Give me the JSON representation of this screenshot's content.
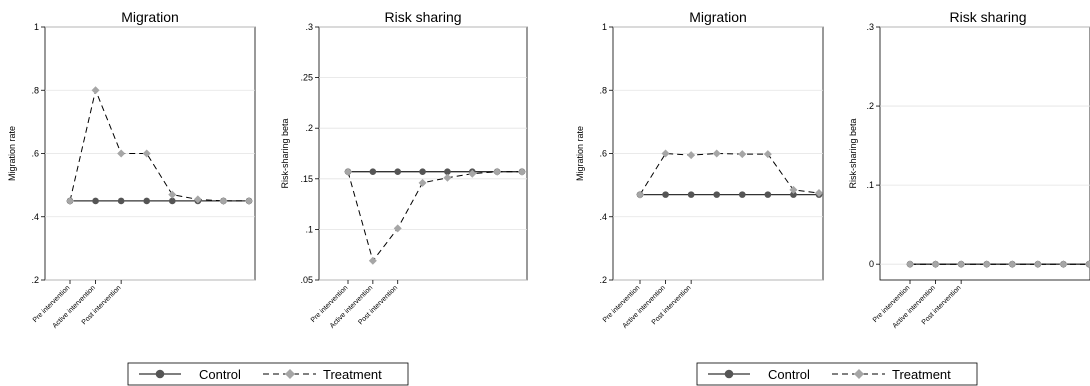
{
  "legend": {
    "control_label": "Control",
    "treatment_label": "Treatment",
    "control_color": "#555555",
    "treatment_color": "#a6a6a6"
  },
  "chart_data": [
    {
      "type": "line",
      "title": "Migration",
      "ylabel": "Migration rate",
      "ylim": [
        0.2,
        1.0
      ],
      "yticks": [
        0.2,
        0.4,
        0.6,
        0.8,
        1.0
      ],
      "ytick_labels": [
        ".2",
        ".4",
        ".6",
        ".8",
        "1"
      ],
      "grid": true,
      "x_tick_labels": [
        "Pre intervention",
        "Active intervention",
        "Post intervention"
      ],
      "series": [
        {
          "name": "Control",
          "values": [
            0.45,
            0.45,
            0.45,
            0.45,
            0.45,
            0.45,
            0.45,
            0.45
          ]
        },
        {
          "name": "Treatment",
          "values": [
            0.45,
            0.8,
            0.6,
            0.6,
            0.47,
            0.455,
            0.45,
            0.45
          ]
        }
      ]
    },
    {
      "type": "line",
      "title": "Risk sharing",
      "ylabel": "Risk-sharing beta",
      "ylim": [
        0.05,
        0.3
      ],
      "yticks": [
        0.05,
        0.1,
        0.15,
        0.2,
        0.25,
        0.3
      ],
      "ytick_labels": [
        ".05",
        ".1",
        ".15",
        ".2",
        ".25",
        ".3"
      ],
      "grid": true,
      "x_tick_labels": [
        "Pre intervention",
        "Active intervention",
        "Post intervention"
      ],
      "series": [
        {
          "name": "Control",
          "values": [
            0.157,
            0.157,
            0.157,
            0.157,
            0.157,
            0.157,
            0.157,
            0.157
          ]
        },
        {
          "name": "Treatment",
          "values": [
            0.157,
            0.069,
            0.101,
            0.146,
            0.151,
            0.155,
            0.157,
            0.157
          ]
        }
      ]
    },
    {
      "type": "line",
      "title": "Migration",
      "ylabel": "Migration rate",
      "ylim": [
        0.2,
        1.0
      ],
      "yticks": [
        0.2,
        0.4,
        0.6,
        0.8,
        1.0
      ],
      "ytick_labels": [
        ".2",
        ".4",
        ".6",
        ".8",
        "1"
      ],
      "grid": true,
      "x_tick_labels": [
        "Pre intervention",
        "Active intervention",
        "Post intervention"
      ],
      "series": [
        {
          "name": "Control",
          "values": [
            0.47,
            0.47,
            0.47,
            0.47,
            0.47,
            0.47,
            0.47,
            0.47
          ]
        },
        {
          "name": "Treatment",
          "values": [
            0.47,
            0.6,
            0.595,
            0.6,
            0.598,
            0.598,
            0.485,
            0.475
          ]
        }
      ]
    },
    {
      "type": "line",
      "title": "Risk sharing",
      "ylabel": "Risk-sharing beta",
      "ylim": [
        -0.02,
        0.3
      ],
      "yticks": [
        0.0,
        0.1,
        0.2,
        0.3
      ],
      "ytick_labels": [
        "0",
        ".1",
        ".2",
        ".3"
      ],
      "grid": true,
      "x_tick_labels": [
        "Pre intervention",
        "Active intervention",
        "Post intervention"
      ],
      "series": [
        {
          "name": "Control",
          "values": [
            0.0,
            0.0,
            0.0,
            0.0,
            0.0,
            0.0,
            0.0,
            0.0
          ]
        },
        {
          "name": "Treatment",
          "values": [
            0.0,
            0.0,
            0.0,
            0.0,
            0.0,
            0.0,
            0.0,
            0.0
          ]
        }
      ]
    }
  ]
}
